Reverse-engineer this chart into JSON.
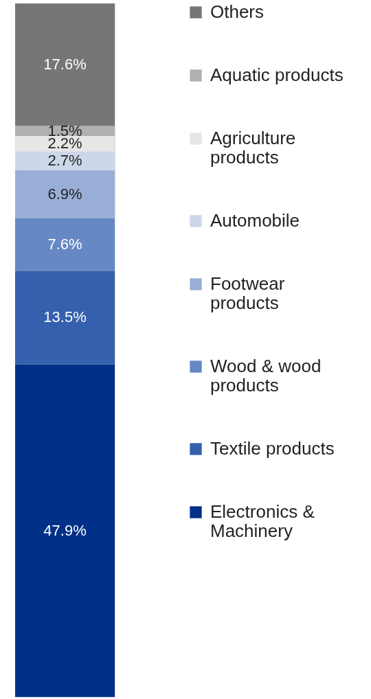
{
  "chart_data": {
    "type": "bar",
    "stacked": true,
    "categories": [
      null
    ],
    "legend": "right",
    "series": [
      {
        "name": "Electronics & Machinery",
        "color": "#003087",
        "values": [
          47.9
        ],
        "value_labels": [
          "47.9%"
        ]
      },
      {
        "name": "Textile products",
        "color": "#3560ae",
        "values": [
          13.5
        ],
        "value_labels": [
          "13.5%"
        ]
      },
      {
        "name": "Wood & wood products",
        "color": "#6688c4",
        "values": [
          7.6
        ],
        "value_labels": [
          "7.6%"
        ]
      },
      {
        "name": "Footwear products",
        "color": "#99aed6",
        "values": [
          6.9
        ],
        "value_labels": [
          "6.9%"
        ]
      },
      {
        "name": "Automobile",
        "color": "#cdd7ea",
        "values": [
          2.7
        ],
        "value_labels": [
          "2.7%"
        ]
      },
      {
        "name": "Agriculture products",
        "color": "#e6e6e6",
        "values": [
          2.2
        ],
        "value_labels": [
          "2.2%"
        ]
      },
      {
        "name": "Aquatic products",
        "color": "#b0b0b0",
        "values": [
          1.5
        ],
        "value_labels": [
          "1.5%"
        ]
      },
      {
        "name": "Others",
        "color": "#767676",
        "values": [
          17.6
        ],
        "value_labels": [
          "17.6%"
        ]
      }
    ]
  }
}
